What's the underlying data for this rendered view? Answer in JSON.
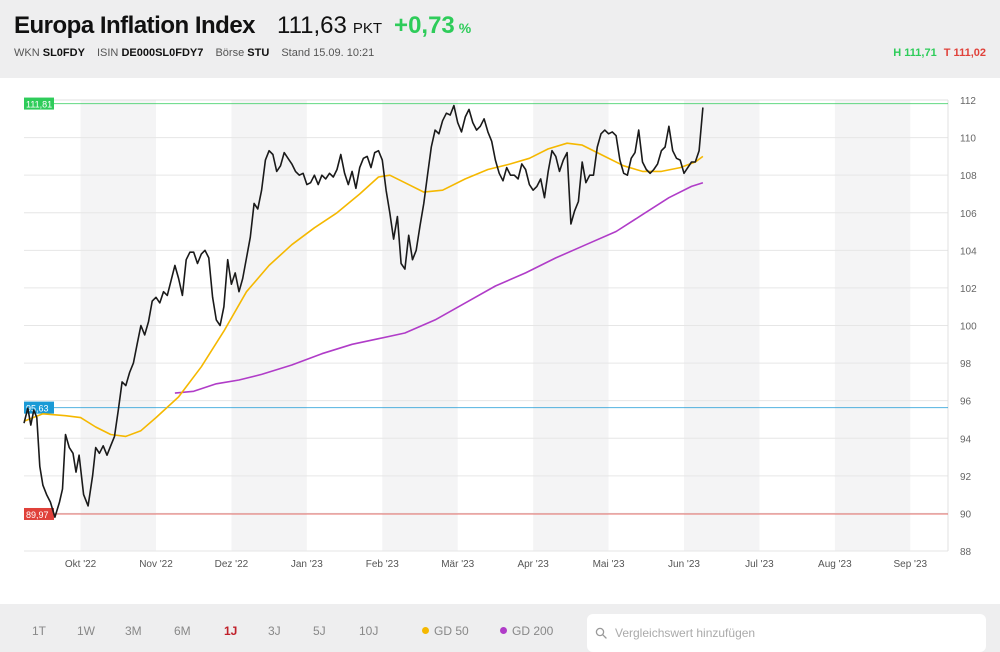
{
  "header": {
    "title": "Europa Inflation Index",
    "price": "111,63",
    "unit": "PKT",
    "change": "+0,73",
    "change_unit": "%",
    "wkn_label": "WKN",
    "wkn": "SL0FDY",
    "isin_label": "ISIN",
    "isin": "DE000SL0FDY7",
    "exchange_label": "Börse",
    "exchange": "STU",
    "stand": "Stand 15.09. 10:21",
    "high": "H 111,71",
    "low": "T 111,02"
  },
  "colors": {
    "positive": "#2ecc5a",
    "negative": "#e0413a",
    "price_line": "#1a1a1a",
    "gd50": "#f5b800",
    "gd200": "#b03cc8",
    "high_marker": "#2ecc5a",
    "low_marker": "#e0413a",
    "start_marker": "#1a9ad6",
    "active_range": "#c0202a"
  },
  "markers": {
    "high": "111,81",
    "start": "95,63",
    "low": "89,97"
  },
  "chart_data": {
    "type": "line",
    "title": "",
    "xlabel": "",
    "ylabel": "",
    "ylim": [
      88,
      112
    ],
    "yticks": [
      88,
      90,
      92,
      94,
      96,
      98,
      100,
      102,
      104,
      106,
      108,
      110,
      112
    ],
    "x_tick_labels": [
      "Okt '22",
      "Nov '22",
      "Dez '22",
      "Jan '23",
      "Feb '23",
      "Mär '23",
      "Apr '23",
      "Mai '23",
      "Jun '23",
      "Jul '23",
      "Aug '23",
      "Sep '23"
    ],
    "x_tick_months": [
      1,
      2,
      3,
      4,
      5,
      6,
      7,
      8,
      9,
      10,
      11,
      12
    ],
    "x_range_months": [
      0.25,
      12.5
    ],
    "reference_lines": [
      {
        "label": "111,81",
        "value": 111.81
      },
      {
        "label": "95,63",
        "value": 95.63
      },
      {
        "label": "89,97",
        "value": 89.97
      }
    ],
    "series": [
      {
        "name": "",
        "role": "price",
        "points": [
          [
            0.25,
            94.8
          ],
          [
            0.3,
            95.6
          ],
          [
            0.34,
            94.7
          ],
          [
            0.38,
            95.5
          ],
          [
            0.42,
            95.1
          ],
          [
            0.46,
            92.5
          ],
          [
            0.5,
            91.5
          ],
          [
            0.55,
            91
          ],
          [
            0.6,
            90.6
          ],
          [
            0.66,
            89.8
          ],
          [
            0.72,
            90.6
          ],
          [
            0.76,
            91.3
          ],
          [
            0.8,
            94.2
          ],
          [
            0.85,
            93.5
          ],
          [
            0.9,
            93.2
          ],
          [
            0.94,
            92.2
          ],
          [
            0.98,
            93.1
          ],
          [
            1.04,
            91
          ],
          [
            1.1,
            90.4
          ],
          [
            1.16,
            92
          ],
          [
            1.2,
            93.5
          ],
          [
            1.25,
            93.2
          ],
          [
            1.3,
            93.6
          ],
          [
            1.35,
            93.1
          ],
          [
            1.4,
            93.6
          ],
          [
            1.45,
            94.1
          ],
          [
            1.5,
            95.5
          ],
          [
            1.55,
            97
          ],
          [
            1.6,
            96.8
          ],
          [
            1.65,
            97.5
          ],
          [
            1.7,
            98
          ],
          [
            1.75,
            99
          ],
          [
            1.8,
            100
          ],
          [
            1.85,
            99.5
          ],
          [
            1.9,
            100.2
          ],
          [
            1.95,
            101.3
          ],
          [
            2.0,
            101.5
          ],
          [
            2.05,
            101.2
          ],
          [
            2.1,
            101.8
          ],
          [
            2.15,
            101.6
          ],
          [
            2.2,
            102.4
          ],
          [
            2.25,
            103.2
          ],
          [
            2.3,
            102.5
          ],
          [
            2.35,
            101.6
          ],
          [
            2.4,
            103.5
          ],
          [
            2.45,
            103.9
          ],
          [
            2.5,
            103.9
          ],
          [
            2.55,
            103.3
          ],
          [
            2.6,
            103.8
          ],
          [
            2.65,
            104
          ],
          [
            2.7,
            103.6
          ],
          [
            2.75,
            101.5
          ],
          [
            2.8,
            100.3
          ],
          [
            2.85,
            100
          ],
          [
            2.9,
            101
          ],
          [
            2.95,
            103.5
          ],
          [
            3.0,
            102.2
          ],
          [
            3.05,
            102.8
          ],
          [
            3.1,
            101.8
          ],
          [
            3.15,
            102.5
          ],
          [
            3.2,
            103.6
          ],
          [
            3.25,
            104.7
          ],
          [
            3.3,
            106.5
          ],
          [
            3.35,
            106.2
          ],
          [
            3.4,
            107.2
          ],
          [
            3.45,
            108.8
          ],
          [
            3.5,
            109.3
          ],
          [
            3.55,
            109.1
          ],
          [
            3.6,
            108.2
          ],
          [
            3.65,
            108.5
          ],
          [
            3.7,
            109.2
          ],
          [
            3.75,
            108.9
          ],
          [
            3.8,
            108.6
          ],
          [
            3.85,
            108.2
          ],
          [
            3.9,
            108
          ],
          [
            3.95,
            108.1
          ],
          [
            4.0,
            107.5
          ],
          [
            4.05,
            107.6
          ],
          [
            4.1,
            108
          ],
          [
            4.15,
            107.5
          ],
          [
            4.2,
            108
          ],
          [
            4.25,
            107.8
          ],
          [
            4.3,
            108.1
          ],
          [
            4.35,
            107.9
          ],
          [
            4.4,
            108.3
          ],
          [
            4.45,
            109.1
          ],
          [
            4.5,
            108.1
          ],
          [
            4.55,
            107.5
          ],
          [
            4.6,
            108.2
          ],
          [
            4.65,
            107.3
          ],
          [
            4.7,
            108.4
          ],
          [
            4.75,
            108.9
          ],
          [
            4.8,
            109
          ],
          [
            4.85,
            108.4
          ],
          [
            4.9,
            109.2
          ],
          [
            4.95,
            109.3
          ],
          [
            5.0,
            108.8
          ],
          [
            5.05,
            107.2
          ],
          [
            5.1,
            106
          ],
          [
            5.15,
            104.6
          ],
          [
            5.2,
            105.8
          ],
          [
            5.25,
            103.3
          ],
          [
            5.3,
            103
          ],
          [
            5.35,
            104.8
          ],
          [
            5.4,
            103.5
          ],
          [
            5.45,
            104
          ],
          [
            5.5,
            105.3
          ],
          [
            5.55,
            106.5
          ],
          [
            5.6,
            108
          ],
          [
            5.65,
            109.5
          ],
          [
            5.7,
            110.4
          ],
          [
            5.75,
            110.2
          ],
          [
            5.8,
            110.9
          ],
          [
            5.85,
            111.3
          ],
          [
            5.9,
            111.2
          ],
          [
            5.95,
            111.7
          ],
          [
            6.0,
            110.8
          ],
          [
            6.05,
            110.3
          ],
          [
            6.1,
            111.1
          ],
          [
            6.15,
            111.5
          ],
          [
            6.2,
            110.8
          ],
          [
            6.25,
            110.4
          ],
          [
            6.3,
            110.6
          ],
          [
            6.35,
            111
          ],
          [
            6.4,
            110.3
          ],
          [
            6.45,
            109.8
          ],
          [
            6.5,
            108.8
          ],
          [
            6.55,
            108.1
          ],
          [
            6.6,
            107.7
          ],
          [
            6.65,
            108.4
          ],
          [
            6.7,
            108
          ],
          [
            6.75,
            108
          ],
          [
            6.8,
            107.8
          ],
          [
            6.85,
            108.6
          ],
          [
            6.9,
            108.3
          ],
          [
            6.95,
            107.5
          ],
          [
            7.0,
            107.2
          ],
          [
            7.05,
            107.4
          ],
          [
            7.1,
            107.8
          ],
          [
            7.15,
            106.8
          ],
          [
            7.2,
            108.2
          ],
          [
            7.25,
            109.3
          ],
          [
            7.3,
            109
          ],
          [
            7.35,
            108.2
          ],
          [
            7.4,
            108.8
          ],
          [
            7.45,
            109.2
          ],
          [
            7.5,
            105.4
          ],
          [
            7.55,
            106.1
          ],
          [
            7.6,
            106.6
          ],
          [
            7.65,
            108.7
          ],
          [
            7.7,
            107.6
          ],
          [
            7.75,
            108
          ],
          [
            7.8,
            108
          ],
          [
            7.85,
            109.5
          ],
          [
            7.9,
            110.2
          ],
          [
            7.95,
            110.4
          ],
          [
            8.0,
            110.2
          ],
          [
            8.05,
            110.3
          ],
          [
            8.1,
            110.1
          ],
          [
            8.15,
            108.8
          ],
          [
            8.2,
            108.1
          ],
          [
            8.25,
            108
          ],
          [
            8.3,
            108.9
          ],
          [
            8.35,
            109.2
          ],
          [
            8.4,
            110.4
          ],
          [
            8.45,
            108.7
          ],
          [
            8.5,
            108.3
          ],
          [
            8.55,
            108.1
          ],
          [
            8.6,
            108.3
          ],
          [
            8.65,
            108.6
          ],
          [
            8.7,
            109.3
          ],
          [
            8.75,
            109.5
          ],
          [
            8.8,
            110.6
          ],
          [
            8.85,
            109.3
          ],
          [
            8.9,
            108.9
          ],
          [
            8.95,
            108.8
          ],
          [
            9.0,
            108.1
          ],
          [
            9.05,
            108.4
          ],
          [
            9.1,
            108.7
          ],
          [
            9.15,
            108.7
          ],
          [
            9.2,
            109.3
          ],
          [
            9.25,
            111.6
          ]
        ]
      },
      {
        "name": "GD 50",
        "role": "gd50",
        "points": [
          [
            0.25,
            94.9
          ],
          [
            0.5,
            95.3
          ],
          [
            0.8,
            95.2
          ],
          [
            1.0,
            95.1
          ],
          [
            1.2,
            94.6
          ],
          [
            1.4,
            94.2
          ],
          [
            1.6,
            94.1
          ],
          [
            1.8,
            94.4
          ],
          [
            2.0,
            95.1
          ],
          [
            2.3,
            96.2
          ],
          [
            2.6,
            97.8
          ],
          [
            2.9,
            99.7
          ],
          [
            3.2,
            101.8
          ],
          [
            3.5,
            103.2
          ],
          [
            3.8,
            104.3
          ],
          [
            4.1,
            105.2
          ],
          [
            4.4,
            106
          ],
          [
            4.7,
            107
          ],
          [
            4.95,
            107.9
          ],
          [
            5.1,
            108
          ],
          [
            5.3,
            107.6
          ],
          [
            5.55,
            107.1
          ],
          [
            5.8,
            107.2
          ],
          [
            6.1,
            107.8
          ],
          [
            6.4,
            108.3
          ],
          [
            6.7,
            108.6
          ],
          [
            6.95,
            108.9
          ],
          [
            7.2,
            109.4
          ],
          [
            7.45,
            109.7
          ],
          [
            7.65,
            109.6
          ],
          [
            7.9,
            109.1
          ],
          [
            8.2,
            108.5
          ],
          [
            8.45,
            108.2
          ],
          [
            8.7,
            108.2
          ],
          [
            8.95,
            108.4
          ],
          [
            9.15,
            108.7
          ],
          [
            9.25,
            109
          ]
        ]
      },
      {
        "name": "GD 200",
        "role": "gd200",
        "points": [
          [
            2.25,
            96.4
          ],
          [
            2.5,
            96.5
          ],
          [
            2.8,
            96.9
          ],
          [
            3.1,
            97.1
          ],
          [
            3.4,
            97.4
          ],
          [
            3.8,
            97.9
          ],
          [
            4.2,
            98.5
          ],
          [
            4.6,
            99
          ],
          [
            4.95,
            99.3
          ],
          [
            5.3,
            99.6
          ],
          [
            5.7,
            100.3
          ],
          [
            6.1,
            101.2
          ],
          [
            6.5,
            102.1
          ],
          [
            6.9,
            102.8
          ],
          [
            7.3,
            103.6
          ],
          [
            7.7,
            104.3
          ],
          [
            8.1,
            105
          ],
          [
            8.45,
            105.9
          ],
          [
            8.8,
            106.8
          ],
          [
            9.1,
            107.4
          ],
          [
            9.25,
            107.6
          ]
        ]
      }
    ]
  },
  "range_buttons": [
    "1T",
    "1W",
    "3M",
    "6M",
    "1J",
    "3J",
    "5J",
    "10J"
  ],
  "active_range": "1J",
  "legend": [
    "GD 50",
    "GD 200"
  ],
  "search": {
    "placeholder": "Vergleichswert hinzufügen",
    "icon": "search-icon"
  }
}
